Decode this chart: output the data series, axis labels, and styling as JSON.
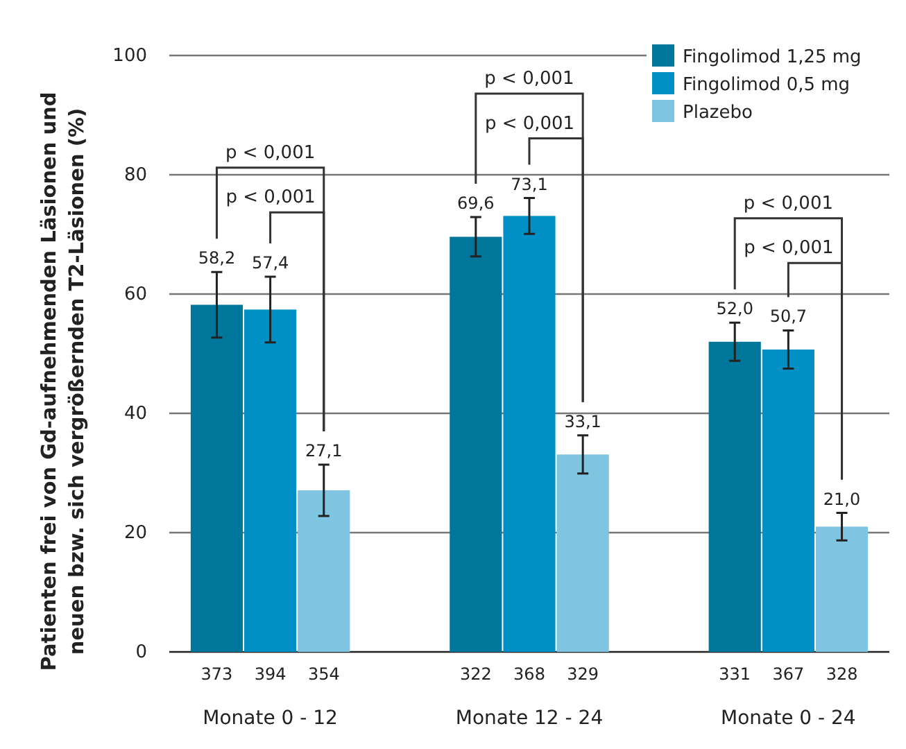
{
  "chart_data": {
    "type": "bar",
    "ylabel": "Patienten frei von Gd-aufnehmenden Läsionen und\nneuen bzw. sich vergrößernden T2-Läsionen (%)",
    "categories": [
      "Monate 0 - 12",
      "Monate 12 - 24",
      "Monate 0 - 24"
    ],
    "series": [
      {
        "name": "Fingolimod 1,25 mg",
        "color": "#00769b",
        "values": [
          58.2,
          69.6,
          52.0
        ],
        "errors": [
          5.5,
          3.3,
          3.2
        ],
        "value_labels": [
          "58,2",
          "69,6",
          "52,0"
        ]
      },
      {
        "name": "Fingolimod 0,5 mg",
        "color": "#0090c6",
        "values": [
          57.4,
          73.1,
          50.7
        ],
        "errors": [
          5.5,
          3.0,
          3.2
        ],
        "value_labels": [
          "57,4",
          "73,1",
          "50,7"
        ]
      },
      {
        "name": "Plazebo",
        "color": "#7fc4e0",
        "values": [
          27.1,
          33.1,
          21.0
        ],
        "errors": [
          4.3,
          3.2,
          2.3
        ],
        "value_labels": [
          "27,1",
          "33,1",
          "21,0"
        ]
      }
    ],
    "ylim": [
      0,
      100
    ],
    "yticks": [
      0,
      20,
      40,
      60,
      80,
      100
    ],
    "grid": "y",
    "legend": "top right",
    "annotations": [
      "373",
      "394",
      "354",
      "322",
      "368",
      "329",
      "331",
      "367",
      "328",
      "p < 0,001",
      "p < 0,001",
      "p < 0,001",
      "p < 0,001",
      "p < 0,001",
      "p < 0,001"
    ]
  }
}
